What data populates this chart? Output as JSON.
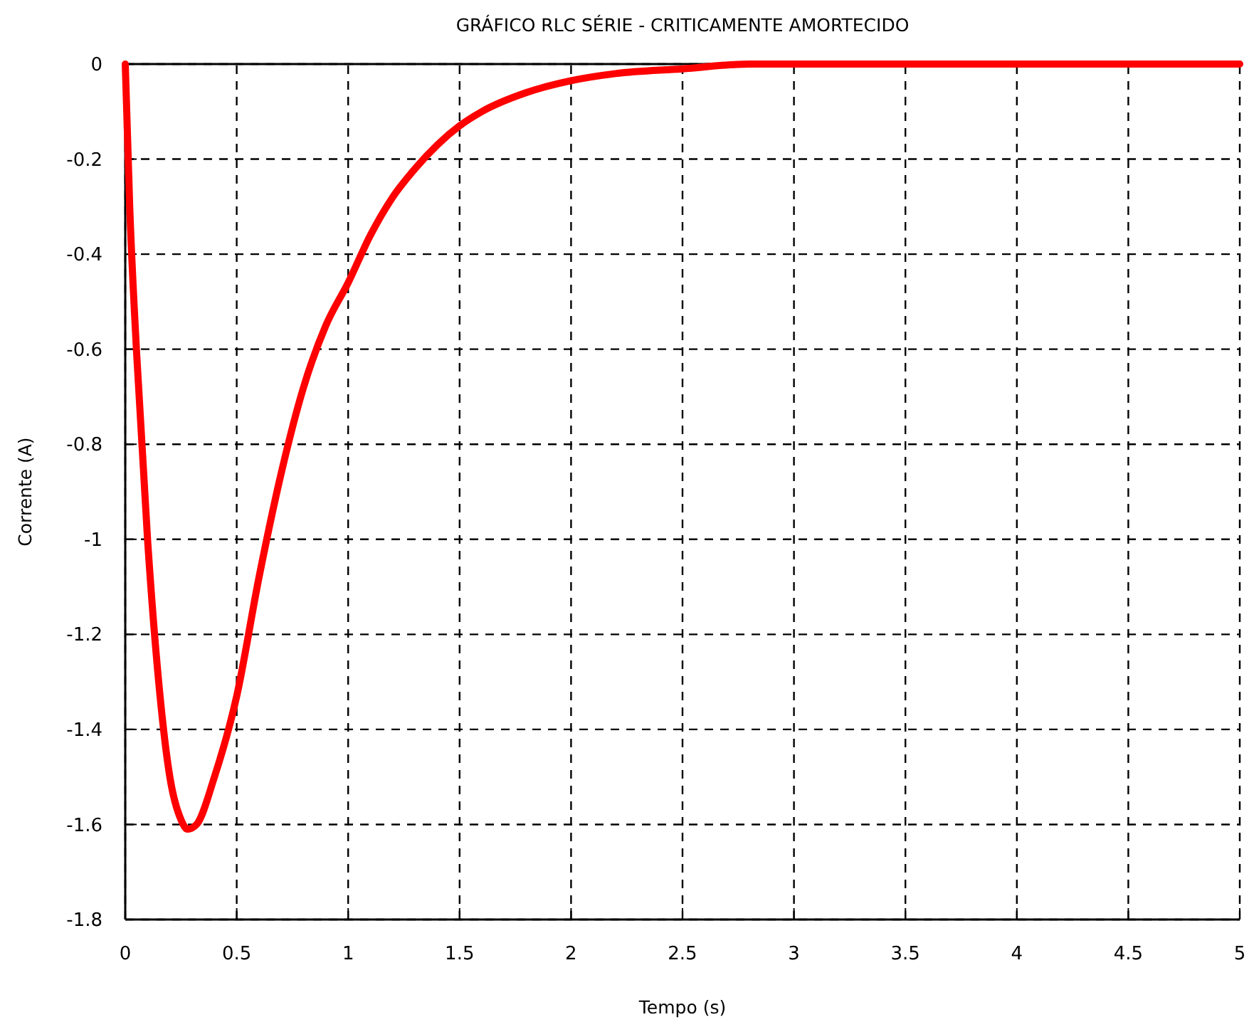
{
  "chart_data": {
    "type": "line",
    "title": "GRÁFICO RLC SÉRIE - CRITICAMENTE AMORTECIDO",
    "xlabel": "Tempo (s)",
    "ylabel": "Corrente (A)",
    "x": [
      0,
      0.02,
      0.05,
      0.1,
      0.15,
      0.2,
      0.25,
      0.28,
      0.32,
      0.4,
      0.5,
      0.6,
      0.7,
      0.8,
      0.9,
      1.0,
      1.1,
      1.2,
      1.3,
      1.4,
      1.5,
      1.6,
      1.8,
      2.0,
      2.2,
      2.5,
      2.8,
      3,
      4,
      5
    ],
    "series": [
      {
        "color": "#ff0000",
        "values": [
          0,
          -0.3,
          -0.6,
          -1.0,
          -1.3,
          -1.5,
          -1.59,
          -1.61,
          -1.6,
          -1.5,
          -1.33,
          -1.08,
          -0.86,
          -0.68,
          -0.55,
          -0.46,
          -0.36,
          -0.28,
          -0.22,
          -0.17,
          -0.13,
          -0.1,
          -0.06,
          -0.035,
          -0.02,
          -0.01,
          0,
          0,
          0,
          0
        ]
      }
    ],
    "xlim": [
      0,
      5
    ],
    "ylim": [
      -1.8,
      0
    ],
    "xticks": [
      0,
      0.5,
      1,
      1.5,
      2,
      2.5,
      3,
      3.5,
      4,
      4.5,
      5
    ],
    "yticks": [
      0,
      -0.2,
      -0.4,
      -0.6,
      -0.8,
      -1,
      -1.2,
      -1.4,
      -1.6,
      -1.8
    ],
    "grid": true,
    "line_style": "solid"
  }
}
